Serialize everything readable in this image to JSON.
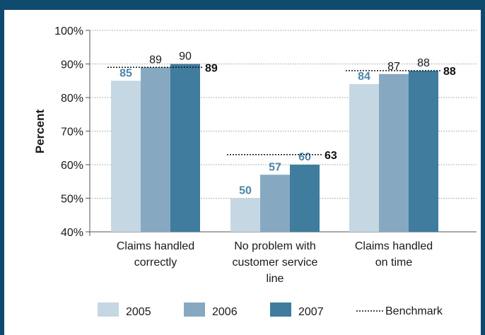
{
  "chart_data": {
    "type": "bar",
    "title": "",
    "xlabel": "",
    "ylabel": "Percent",
    "ylim": [
      40,
      100
    ],
    "ytick_labels": [
      "40%",
      "50%",
      "60%",
      "70%",
      "80%",
      "90%",
      "100%"
    ],
    "ytick_values": [
      40,
      50,
      60,
      70,
      80,
      90,
      100
    ],
    "grid": true,
    "legend_position": "bottom",
    "categories": [
      [
        "Claims handled",
        "correctly"
      ],
      [
        "No problem with",
        "customer service",
        "line"
      ],
      [
        "Claims handled",
        "on time"
      ]
    ],
    "series": [
      {
        "name": "2005",
        "color": "#c5d7e2",
        "values": [
          85,
          50,
          84
        ],
        "labels": [
          "85",
          "50",
          "84"
        ],
        "label_color": "#4a86a8",
        "label_bold": true
      },
      {
        "name": "2006",
        "color": "#86a9c1",
        "values": [
          89,
          57,
          87
        ],
        "labels": [
          "89",
          "57",
          "87"
        ],
        "label_color_by_point": [
          "#1a1a1a",
          "#4a86a8",
          "#1a1a1a"
        ],
        "label_bold_by_point": [
          false,
          true,
          false
        ]
      },
      {
        "name": "2007",
        "color": "#3f7c9e",
        "values": [
          90,
          60,
          88
        ],
        "labels": [
          "90",
          "60",
          "88"
        ],
        "label_color_by_point": [
          "#1a1a1a",
          "#4a86a8",
          "#1a1a1a"
        ],
        "label_bold_by_point": [
          false,
          true,
          false
        ]
      }
    ],
    "benchmark": {
      "name": "Benchmark",
      "values": [
        89,
        63,
        88
      ],
      "labels": [
        "89",
        "63",
        "88"
      ]
    }
  }
}
